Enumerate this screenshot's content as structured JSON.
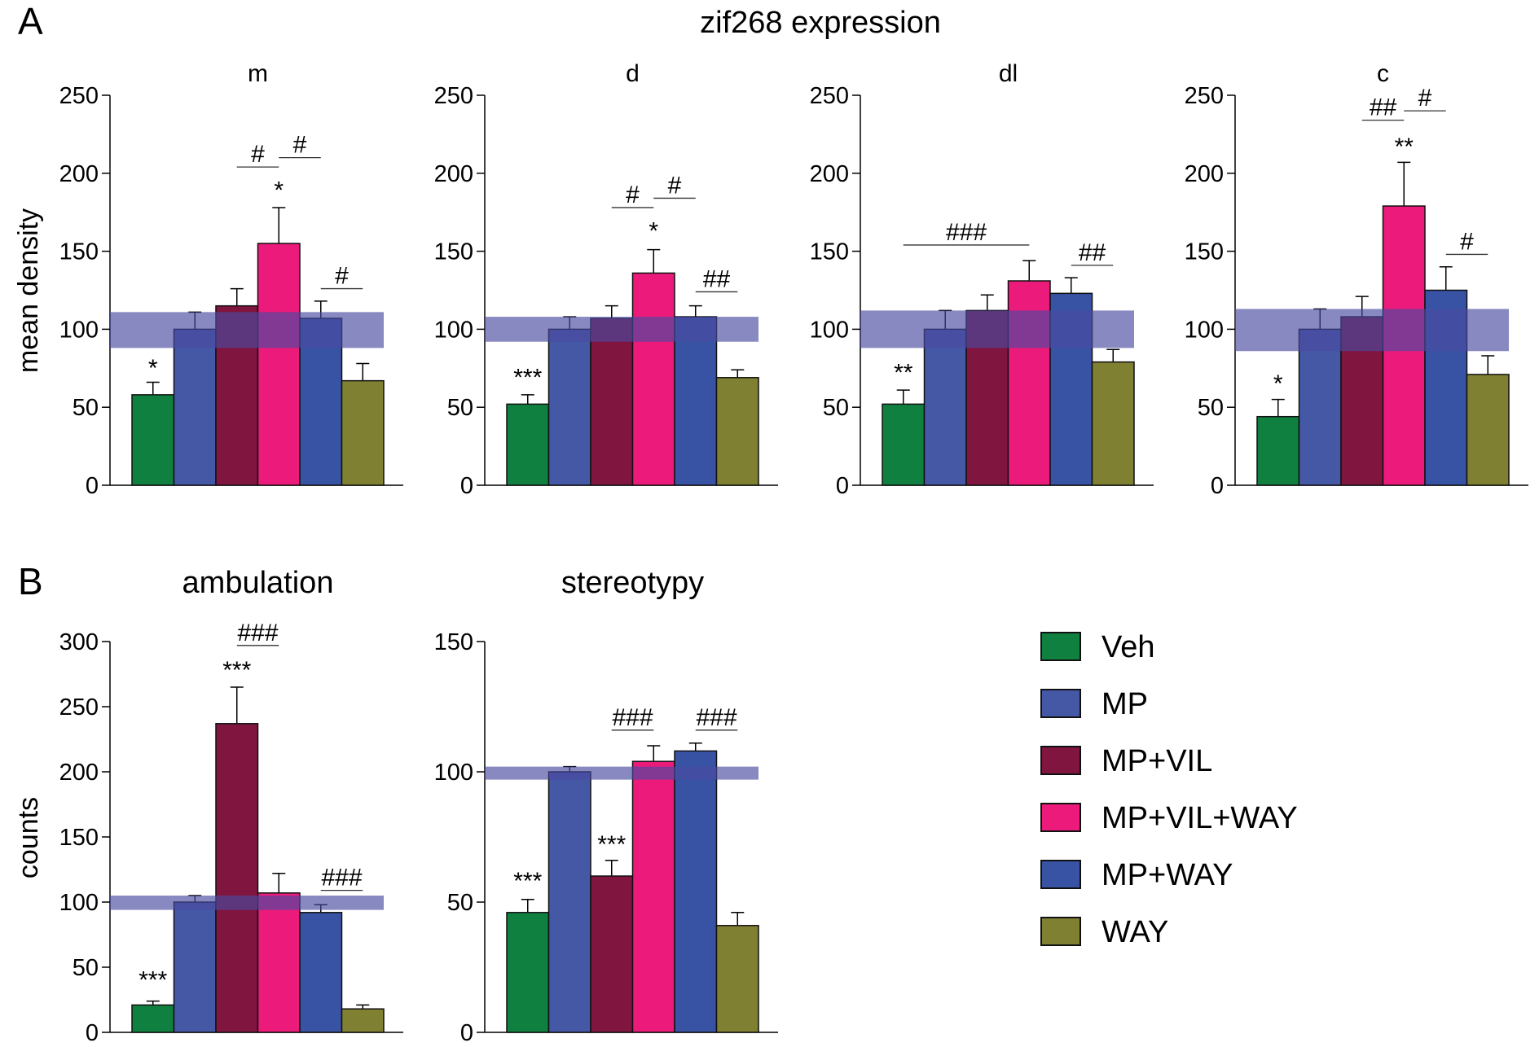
{
  "figure": {
    "panel_a_letter": "A",
    "panel_b_letter": "B",
    "panel_a_title": "zif268 expression",
    "panel_a_ylabel": "mean density",
    "panel_b_ylabel": "counts"
  },
  "legend": [
    {
      "label": "Veh",
      "color": "#108040"
    },
    {
      "label": "MP",
      "color": "#4558a6"
    },
    {
      "label": "MP+VIL",
      "color": "#801540"
    },
    {
      "label": "MP+VIL+WAY",
      "color": "#ec1b7b"
    },
    {
      "label": "MP+WAY",
      "color": "#3853a4"
    },
    {
      "label": "WAY",
      "color": "#808033"
    }
  ],
  "chart_data": [
    {
      "type": "bar",
      "title": "m",
      "ylabel": "mean density",
      "ylim": [
        0,
        250
      ],
      "yticks": [
        "0",
        "50",
        "100",
        "150",
        "200",
        "250"
      ],
      "categories": [
        "Veh",
        "MP",
        "MP+VIL",
        "MP+VIL+WAY",
        "MP+WAY",
        "WAY"
      ],
      "values": [
        58,
        100,
        115,
        155,
        107,
        67
      ],
      "errors": [
        8,
        11,
        11,
        23,
        11,
        11
      ],
      "reference_band": [
        88,
        111
      ],
      "annotations": [
        {
          "text": "*",
          "from": 0,
          "to": 0,
          "y": 70
        },
        {
          "text": "#",
          "from": 2,
          "to": 3,
          "y": 204
        },
        {
          "text": "#",
          "from": 3,
          "to": 4,
          "y": 210
        },
        {
          "text": "*",
          "from": 3,
          "to": 3,
          "y": 184
        },
        {
          "text": "#",
          "from": 4,
          "to": 5,
          "y": 126
        }
      ]
    },
    {
      "type": "bar",
      "title": "d",
      "ylabel": "mean density",
      "ylim": [
        0,
        250
      ],
      "yticks": [
        "0",
        "50",
        "100",
        "150",
        "200",
        "250"
      ],
      "categories": [
        "Veh",
        "MP",
        "MP+VIL",
        "MP+VIL+WAY",
        "MP+WAY",
        "WAY"
      ],
      "values": [
        52,
        100,
        107,
        136,
        108,
        69
      ],
      "errors": [
        6,
        8,
        8,
        15,
        7,
        5
      ],
      "reference_band": [
        92,
        108
      ],
      "annotations": [
        {
          "text": "***",
          "from": 0,
          "to": 0,
          "y": 64
        },
        {
          "text": "#",
          "from": 2,
          "to": 3,
          "y": 178
        },
        {
          "text": "#",
          "from": 3,
          "to": 4,
          "y": 184
        },
        {
          "text": "*",
          "from": 3,
          "to": 3,
          "y": 158
        },
        {
          "text": "##",
          "from": 4,
          "to": 5,
          "y": 124
        }
      ]
    },
    {
      "type": "bar",
      "title": "dl",
      "ylabel": "mean density",
      "ylim": [
        0,
        250
      ],
      "yticks": [
        "0",
        "50",
        "100",
        "150",
        "200",
        "250"
      ],
      "categories": [
        "Veh",
        "MP",
        "MP+VIL",
        "MP+VIL+WAY",
        "MP+WAY",
        "WAY"
      ],
      "values": [
        52,
        100,
        112,
        131,
        123,
        79
      ],
      "errors": [
        9,
        12,
        10,
        13,
        10,
        8
      ],
      "reference_band": [
        88,
        112
      ],
      "annotations": [
        {
          "text": "**",
          "from": 0,
          "to": 0,
          "y": 67
        },
        {
          "text": "###",
          "from": 0,
          "to": 3,
          "y": 154
        },
        {
          "text": "##",
          "from": 4,
          "to": 5,
          "y": 141
        }
      ]
    },
    {
      "type": "bar",
      "title": "c",
      "ylabel": "mean density",
      "ylim": [
        0,
        250
      ],
      "yticks": [
        "0",
        "50",
        "100",
        "150",
        "200",
        "250"
      ],
      "categories": [
        "Veh",
        "MP",
        "MP+VIL",
        "MP+VIL+WAY",
        "MP+WAY",
        "WAY"
      ],
      "values": [
        44,
        100,
        108,
        179,
        125,
        71
      ],
      "errors": [
        11,
        13,
        13,
        28,
        15,
        12
      ],
      "reference_band": [
        86,
        113
      ],
      "annotations": [
        {
          "text": "*",
          "from": 0,
          "to": 0,
          "y": 60
        },
        {
          "text": "**",
          "from": 3,
          "to": 3,
          "y": 212
        },
        {
          "text": "##",
          "from": 2,
          "to": 3,
          "y": 234
        },
        {
          "text": "#",
          "from": 3,
          "to": 4,
          "y": 240
        },
        {
          "text": "#",
          "from": 4,
          "to": 5,
          "y": 148
        }
      ]
    },
    {
      "type": "bar",
      "title": "ambulation",
      "ylabel": "counts",
      "ylim": [
        0,
        300
      ],
      "yticks": [
        "0",
        "50",
        "100",
        "150",
        "200",
        "250",
        "300"
      ],
      "categories": [
        "Veh",
        "MP",
        "MP+VIL",
        "MP+VIL+WAY",
        "MP+WAY",
        "WAY"
      ],
      "values": [
        21,
        100,
        237,
        107,
        92,
        18
      ],
      "errors": [
        3,
        5,
        28,
        15,
        6,
        3
      ],
      "reference_band": [
        94,
        105
      ],
      "annotations": [
        {
          "text": "***",
          "from": 0,
          "to": 0,
          "y": 34
        },
        {
          "text": "***",
          "from": 2,
          "to": 2,
          "y": 272
        },
        {
          "text": "###",
          "from": 2,
          "to": 3,
          "y": 297
        },
        {
          "text": "###",
          "from": 4,
          "to": 5,
          "y": 109
        }
      ]
    },
    {
      "type": "bar",
      "title": "stereotypy",
      "ylabel": "counts",
      "ylim": [
        0,
        150
      ],
      "yticks": [
        "0",
        "50",
        "100",
        "150"
      ],
      "categories": [
        "Veh",
        "MP",
        "MP+VIL",
        "MP+VIL+WAY",
        "MP+WAY",
        "WAY"
      ],
      "values": [
        46,
        100,
        60,
        104,
        108,
        41
      ],
      "errors": [
        5,
        2,
        6,
        6,
        3,
        5
      ],
      "reference_band": [
        97,
        102
      ],
      "annotations": [
        {
          "text": "***",
          "from": 0,
          "to": 0,
          "y": 55
        },
        {
          "text": "***",
          "from": 2,
          "to": 2,
          "y": 69
        },
        {
          "text": "###",
          "from": 2,
          "to": 3,
          "y": 116
        },
        {
          "text": "###",
          "from": 4,
          "to": 5,
          "y": 116
        }
      ]
    }
  ]
}
